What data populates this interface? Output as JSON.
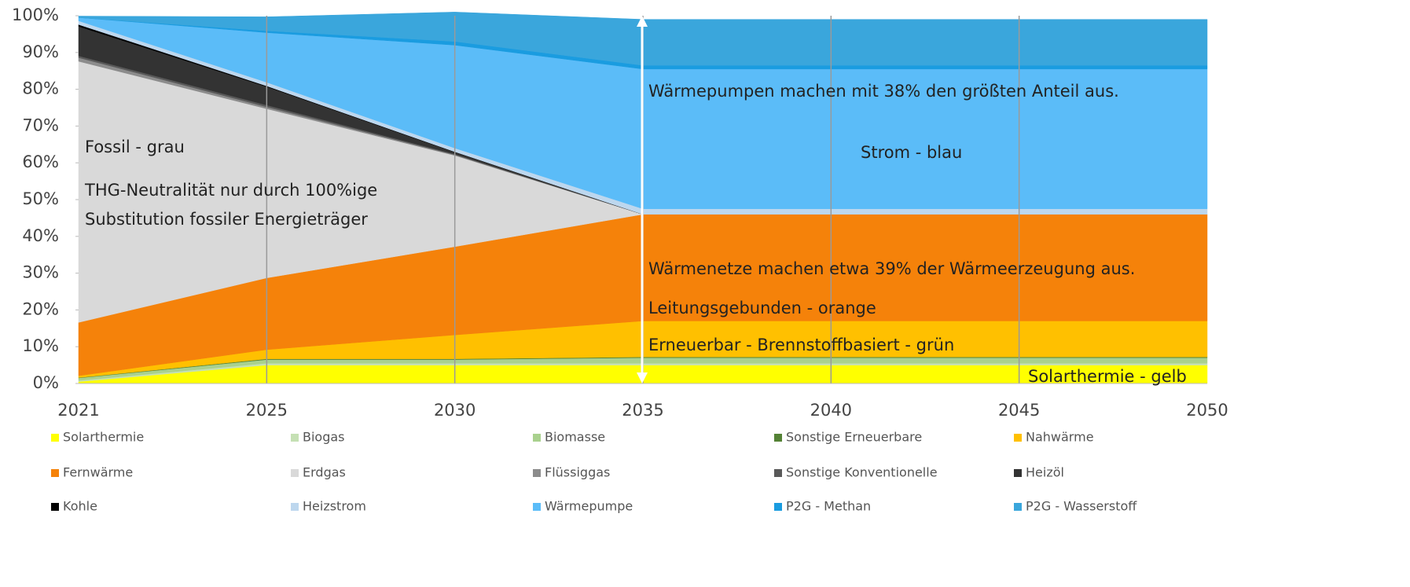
{
  "chart_data": {
    "type": "stacked_area",
    "categories": [
      "2021",
      "2025",
      "2030",
      "2035",
      "2040",
      "2045",
      "2050"
    ],
    "ylim": [
      0,
      100
    ],
    "yticks": [
      {
        "value": 0,
        "label": "0%"
      },
      {
        "value": 10,
        "label": "10%"
      },
      {
        "value": 20,
        "label": "20%"
      },
      {
        "value": 30,
        "label": "30%"
      },
      {
        "value": 40,
        "label": "40%"
      },
      {
        "value": 50,
        "label": "50%"
      },
      {
        "value": 60,
        "label": "60%"
      },
      {
        "value": 70,
        "label": "70%"
      },
      {
        "value": 80,
        "label": "80%"
      },
      {
        "value": 90,
        "label": "90%"
      },
      {
        "value": 100,
        "label": "100%"
      }
    ],
    "grid": "x",
    "series": [
      {
        "name": "Solarthermie",
        "color": "#ffff00",
        "values": [
          0.5,
          5,
          5,
          5,
          5,
          5,
          5
        ]
      },
      {
        "name": "Biogas",
        "color": "#c5e0b4",
        "values": [
          0.3,
          0.5,
          0.5,
          0.5,
          0.5,
          0.5,
          0.5
        ]
      },
      {
        "name": "Biomasse",
        "color": "#a9d18e",
        "values": [
          0.7,
          1,
          1,
          1.5,
          1.5,
          1.5,
          1.5
        ]
      },
      {
        "name": "Sonstige Erneuerbare",
        "color": "#548235",
        "values": [
          0.1,
          0.2,
          0.2,
          0.2,
          0.2,
          0.2,
          0.2
        ]
      },
      {
        "name": "Nahwärme",
        "color": "#ffc000",
        "values": [
          0.5,
          2.5,
          6.5,
          9.8,
          9.8,
          9.8,
          9.8
        ]
      },
      {
        "name": "Fernwärme",
        "color": "#f5820a",
        "values": [
          14.5,
          19.5,
          24,
          29,
          29,
          29,
          29
        ]
      },
      {
        "name": "Erdgas",
        "color": "#d9d9d9",
        "values": [
          71,
          46,
          24.8,
          0,
          0,
          0,
          0
        ]
      },
      {
        "name": "Flüssiggas",
        "color": "#8c8c8c",
        "values": [
          1,
          0.5,
          0.2,
          0,
          0,
          0,
          0
        ]
      },
      {
        "name": "Sonstige Konventionelle",
        "color": "#595959",
        "values": [
          0.5,
          0.5,
          0.2,
          0,
          0,
          0,
          0
        ]
      },
      {
        "name": "Heizöl",
        "color": "#333333",
        "values": [
          8,
          5,
          0.5,
          0,
          0,
          0,
          0
        ]
      },
      {
        "name": "Kohle",
        "color": "#000000",
        "values": [
          0.5,
          0.2,
          0.1,
          0,
          0,
          0,
          0
        ]
      },
      {
        "name": "Heizstrom",
        "color": "#bdd7ee",
        "values": [
          1,
          1,
          1,
          1.5,
          1.5,
          1.5,
          1.5
        ]
      },
      {
        "name": "Wärmepumpe",
        "color": "#5bbcf8",
        "values": [
          0.9,
          13.5,
          28,
          38,
          38,
          38,
          38
        ]
      },
      {
        "name": "P2G - Methan",
        "color": "#1a9ce0",
        "values": [
          0,
          0.5,
          1,
          1,
          1,
          1,
          1
        ]
      },
      {
        "name": "P2G - Wasserstoff",
        "color": "#3aa6dc",
        "values": [
          0.4,
          3.8,
          8,
          12.5,
          12.5,
          12.5,
          12.5
        ]
      }
    ],
    "annotations": [
      "Fossil - grau",
      "THG-Neutralität nur durch 100%ige",
      "Substitution fossiler Energieträger",
      "Wärmepumpen machen mit 38% den größten Anteil aus.",
      "Strom - blau",
      "Wärmenetze machen etwa 39% der Wärmeerzeugung aus.",
      "Leitungsgebunden - orange",
      "Erneuerbar - Brennstoffbasiert - grün",
      "Solarthermie - gelb"
    ]
  }
}
